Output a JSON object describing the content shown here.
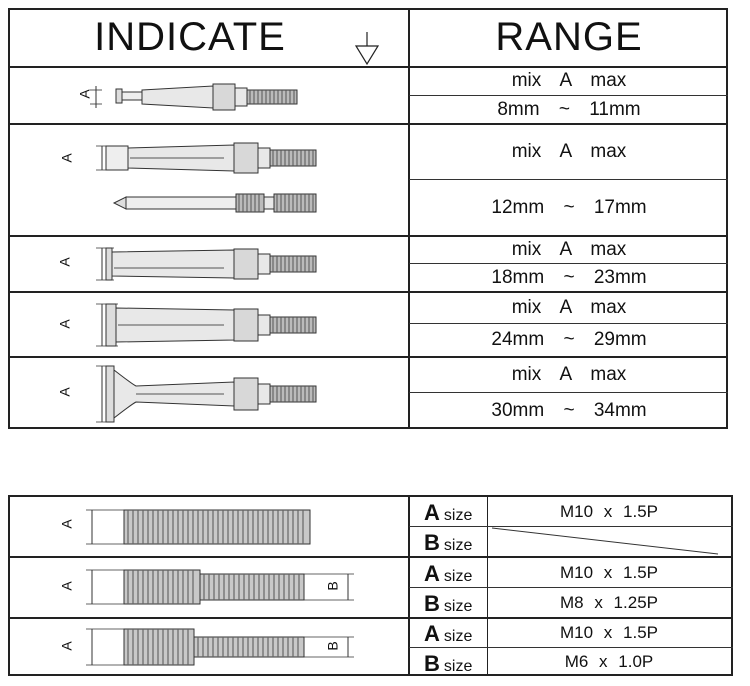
{
  "header": {
    "indicate": "INDICATE",
    "range": "RANGE"
  },
  "ranges": [
    {
      "label": "mix A max",
      "value": "8mm ~ 11mm"
    },
    {
      "label": "mix A max",
      "value": "12mm ~ 17mm"
    },
    {
      "label": "mix A max",
      "value": "18mm ~ 23mm"
    },
    {
      "label": "mix A max",
      "value": "24mm ~ 29mm"
    },
    {
      "label": "mix A max",
      "value": "30mm ~ 34mm"
    }
  ],
  "dimension_labels": {
    "a": "A",
    "b": "B"
  },
  "threads": [
    {
      "a_label": "A",
      "a_unit": "size",
      "a_value": "M10 x 1.5P",
      "b_label": "B",
      "b_unit": "size",
      "b_value": ""
    },
    {
      "a_label": "A",
      "a_unit": "size",
      "a_value": "M10 x 1.5P",
      "b_label": "B",
      "b_unit": "size",
      "b_value": "M8 x 1.25P"
    },
    {
      "a_label": "A",
      "a_unit": "size",
      "a_value": "M10 x 1.5P",
      "b_label": "B",
      "b_unit": "size",
      "b_value": "M6 x 1.0P"
    }
  ]
}
